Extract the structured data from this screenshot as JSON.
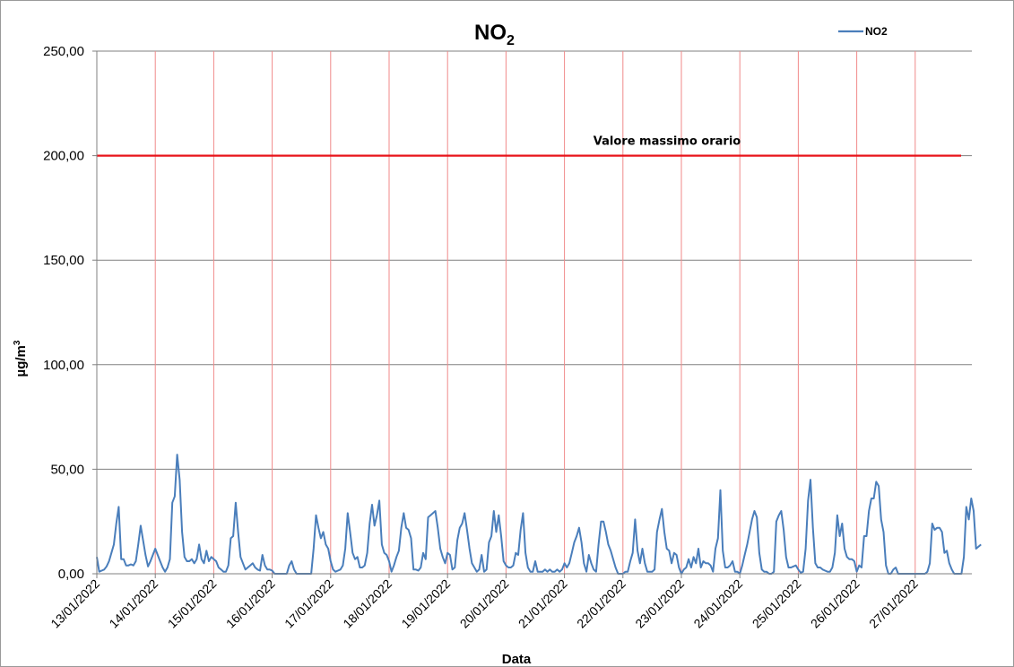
{
  "chart_data": {
    "type": "line",
    "title": {
      "main": "NO",
      "sub": "2"
    },
    "xlabel": "Data",
    "ylabel": {
      "main": "µg/m",
      "sup": "3"
    },
    "ylim": [
      0,
      250
    ],
    "yticks": [
      "0,00",
      "50,00",
      "100,00",
      "150,00",
      "200,00",
      "250,00"
    ],
    "xticks": [
      "13/01/2022",
      "14/01/2022",
      "15/01/2022",
      "16/01/2022",
      "17/01/2022",
      "18/01/2022",
      "19/01/2022",
      "20/01/2022",
      "21/01/2022",
      "22/01/2022",
      "23/01/2022",
      "24/01/2022",
      "25/01/2022",
      "26/01/2022",
      "27/01/2022"
    ],
    "grid": true,
    "legend_position": "top-right",
    "series": [
      {
        "name": "NO2",
        "color": "#4a7ebb",
        "x_start": "13/01/2022",
        "step_hours": 1,
        "values": [
          8,
          1,
          1.5,
          2,
          3.5,
          6,
          10,
          14,
          24,
          32,
          7,
          7,
          4,
          4,
          4.5,
          4,
          6,
          14,
          23,
          16,
          9,
          3.5,
          6,
          9,
          12,
          9,
          6,
          3,
          1,
          3,
          7,
          34,
          37,
          57,
          45,
          20,
          8,
          6,
          6,
          7,
          5,
          7,
          14,
          7,
          5,
          11,
          6,
          8,
          7,
          6,
          3,
          2,
          1,
          1,
          4,
          17,
          18,
          34,
          20,
          8,
          5,
          2,
          3,
          4,
          5,
          3,
          2,
          1.5,
          9,
          4,
          2,
          2,
          1.5,
          0,
          0,
          0,
          0,
          0,
          0,
          4,
          6,
          2,
          0,
          0,
          0,
          0,
          0,
          0,
          0,
          12,
          28,
          22,
          17,
          20,
          14,
          12,
          6,
          2,
          1,
          1.5,
          2,
          4,
          12,
          29,
          20,
          10,
          7,
          8,
          3,
          3,
          4,
          10,
          24,
          33,
          23,
          28,
          35,
          14,
          10,
          9,
          6,
          1,
          4,
          8,
          11,
          22,
          29,
          22,
          21,
          17,
          2,
          2,
          1.5,
          3,
          10,
          7,
          27,
          28,
          29,
          30,
          22,
          12,
          8,
          5,
          10,
          9,
          2,
          3,
          16,
          22,
          24,
          29,
          21,
          12,
          5,
          3,
          1,
          2,
          9,
          1,
          2,
          15,
          18,
          30,
          20,
          28,
          18,
          6,
          4,
          3,
          3,
          4,
          10,
          9,
          21,
          29,
          10,
          3,
          1,
          1,
          6,
          1,
          1,
          1,
          2,
          1,
          2,
          1,
          1,
          2,
          1,
          2,
          5,
          3,
          5,
          10,
          15,
          18,
          22,
          15,
          5,
          1,
          9,
          5,
          2,
          1,
          14,
          25,
          25,
          20,
          14,
          11,
          7,
          3,
          0,
          0,
          0,
          1,
          1,
          6,
          10,
          26,
          11,
          5,
          12,
          5,
          1,
          1,
          1,
          2,
          20,
          26,
          31,
          20,
          12,
          11,
          5,
          10,
          9,
          3,
          0,
          2,
          3,
          7,
          3,
          8,
          5,
          12,
          3,
          6,
          5,
          5,
          4,
          1,
          12,
          17,
          40,
          11,
          3,
          3,
          4,
          6,
          1,
          1,
          0,
          4,
          9,
          14,
          20,
          26,
          30,
          27,
          10,
          2,
          1,
          1,
          0,
          0,
          1,
          25,
          28,
          30,
          21,
          8,
          3,
          3,
          3.5,
          4,
          2,
          0.5,
          1,
          12,
          35,
          45,
          22,
          5,
          3,
          3,
          2,
          1.5,
          1,
          1,
          3,
          10,
          28,
          18,
          24,
          12,
          8,
          7,
          7,
          6,
          1,
          4,
          3,
          18,
          18,
          30,
          36,
          36,
          44,
          42,
          26,
          20,
          4,
          0,
          0,
          2,
          3,
          0,
          0,
          0,
          0,
          0,
          0,
          0,
          0,
          0,
          0,
          0,
          0,
          1,
          5,
          24,
          21,
          22,
          22,
          20,
          10,
          11,
          5,
          2,
          0,
          0,
          0,
          0,
          8,
          32,
          26,
          36,
          30,
          12,
          13,
          14
        ]
      }
    ],
    "reference_lines": [
      {
        "label": "Valore massimo orario",
        "value": 200,
        "color": "#e8141b"
      }
    ]
  }
}
